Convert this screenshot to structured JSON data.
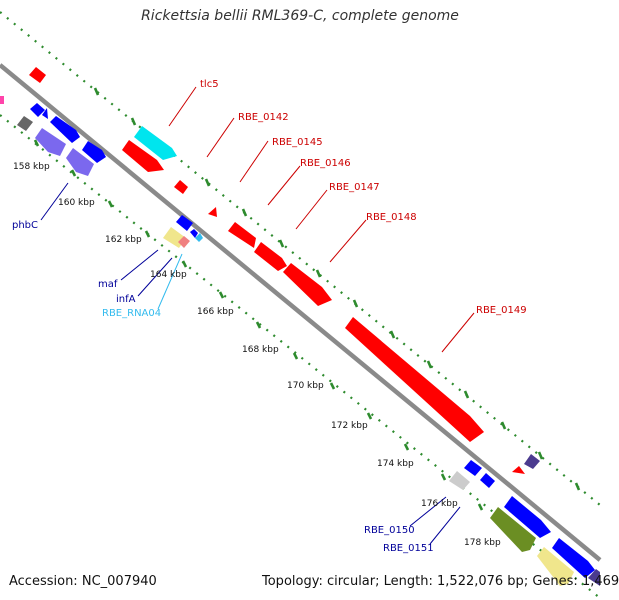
{
  "title": "Rickettsia bellii RML369-C, complete genome",
  "footer": {
    "accession_label": "Accession:",
    "accession": "NC_007940",
    "topology_label": "Topology:",
    "topology": "circular",
    "length_label": "Length:",
    "length": "1,522,076 bp",
    "genes_label": "Genes:",
    "genes": "1,469"
  },
  "ticks": [
    "158 kbp",
    "160 kbp",
    "162 kbp",
    "164 kbp",
    "166 kbp",
    "168 kbp",
    "170 kbp",
    "172 kbp",
    "174 kbp",
    "176 kbp",
    "178 kbp"
  ],
  "forward_labels": [
    "tlc5",
    "RBE_0142",
    "RBE_0145",
    "RBE_0146",
    "RBE_0147",
    "RBE_0148",
    "RBE_0149"
  ],
  "reverse_labels": {
    "phbC": "phbC",
    "maf": "maf",
    "infA": "infA",
    "rna": "RBE_RNA04",
    "rbe0150": "RBE_0150",
    "rbe0151": "RBE_0151"
  },
  "colors": {
    "backbone": "#8a8a8a",
    "dotted_guides": "#2e8b2e",
    "gene_forward": "#ff0000",
    "gene_reverse": "#0000ff",
    "trna": "#00e5ee",
    "rrna_purple": "#7b68ee",
    "label_forward": "#cc0000",
    "label_reverse": "#000099",
    "label_rna": "#33bbee"
  }
}
